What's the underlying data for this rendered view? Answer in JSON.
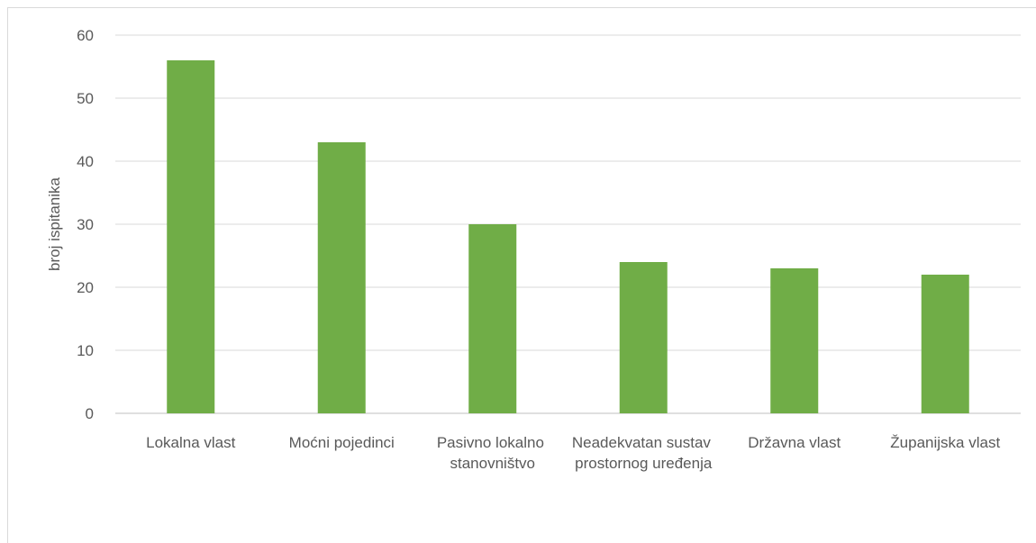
{
  "chart_data": {
    "type": "bar",
    "y_label": "broj ispitanika",
    "categories": [
      "Lokalna vlast",
      "Moćni pojedinci",
      "Pasivno lokalno stanovništvo",
      "Neadekvatan sustav prostornog uređenja",
      "Državna vlast",
      "Županijska vlast"
    ],
    "values": [
      56,
      43,
      30,
      24,
      23,
      22
    ],
    "color": "#70ad47",
    "ylim": [
      0,
      60
    ],
    "yticks": [
      0,
      10,
      20,
      30,
      40,
      50,
      60
    ],
    "grid": true
  }
}
